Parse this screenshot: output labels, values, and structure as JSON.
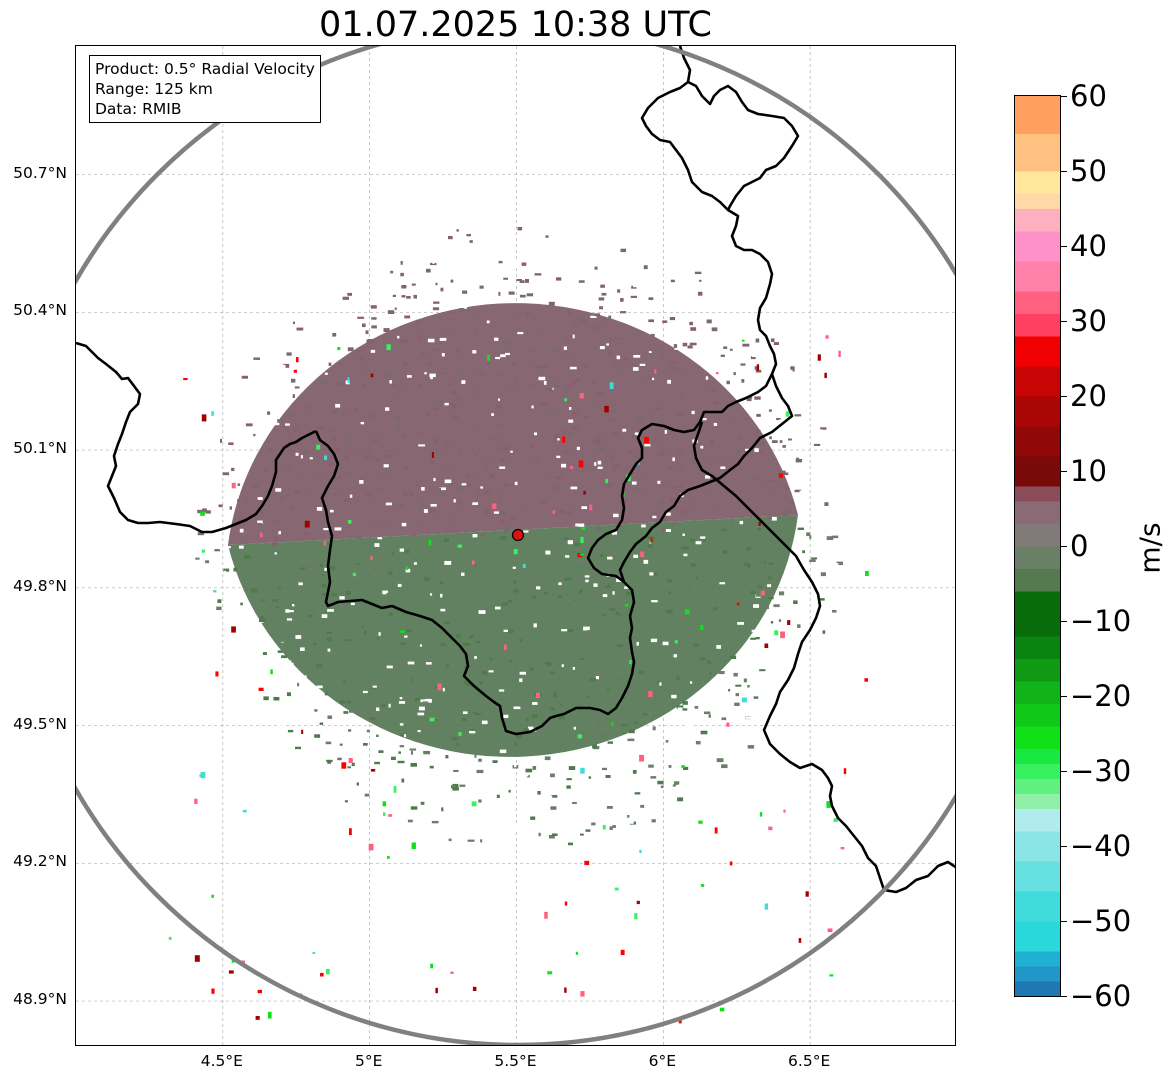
{
  "title": "01.07.2025 10:38 UTC",
  "info_box": {
    "product": "Product: 0.5° Radial Velocity",
    "range": "Range: 125 km",
    "data": "Data: RMIB"
  },
  "map": {
    "lon_min": 4.0,
    "lon_max": 7.0,
    "lat_min": 48.8,
    "lat_max": 50.98,
    "radar_site": {
      "lon": 5.505,
      "lat": 49.915
    },
    "colors": {
      "range_ring": "#808080",
      "border": "#000000",
      "radar_marker": "#e01010",
      "receding": "#7f5f6a",
      "approaching": "#5a7a58",
      "grid": "#b0b0b0"
    },
    "lat_ticks": [
      {
        "value": 50.7,
        "label": "50.7°N"
      },
      {
        "value": 50.4,
        "label": "50.4°N"
      },
      {
        "value": 50.1,
        "label": "50.1°N"
      },
      {
        "value": 49.8,
        "label": "49.8°N"
      },
      {
        "value": 49.5,
        "label": "49.5°N"
      },
      {
        "value": 49.2,
        "label": "49.2°N"
      },
      {
        "value": 48.9,
        "label": "48.9°N"
      }
    ],
    "lon_ticks": [
      {
        "value": 4.5,
        "label": "4.5°E"
      },
      {
        "value": 5.0,
        "label": "5°E"
      },
      {
        "value": 5.5,
        "label": "5.5°E"
      },
      {
        "value": 6.0,
        "label": "6°E"
      },
      {
        "value": 6.5,
        "label": "6.5°E"
      }
    ]
  },
  "colorbar": {
    "unit": "m/s",
    "min": -60,
    "max": 60,
    "ticks": [
      {
        "value": 60,
        "label": "60"
      },
      {
        "value": 50,
        "label": "50"
      },
      {
        "value": 40,
        "label": "40"
      },
      {
        "value": 30,
        "label": "30"
      },
      {
        "value": 20,
        "label": "20"
      },
      {
        "value": 10,
        "label": "10"
      },
      {
        "value": 0,
        "label": "0"
      },
      {
        "value": -10,
        "label": "−10"
      },
      {
        "value": -20,
        "label": "−20"
      },
      {
        "value": -30,
        "label": "−30"
      },
      {
        "value": -40,
        "label": "−40"
      },
      {
        "value": -50,
        "label": "−50"
      },
      {
        "value": -60,
        "label": "−60"
      }
    ],
    "stops": [
      {
        "from": -60,
        "to": -58,
        "color": "#1f78b4"
      },
      {
        "from": -58,
        "to": -56,
        "color": "#2396c8"
      },
      {
        "from": -56,
        "to": -54,
        "color": "#20b0d4"
      },
      {
        "from": -54,
        "to": -50,
        "color": "#2ad8dc"
      },
      {
        "from": -50,
        "to": -46,
        "color": "#40dcdc"
      },
      {
        "from": -46,
        "to": -42,
        "color": "#66e0e0"
      },
      {
        "from": -42,
        "to": -38,
        "color": "#8ae6e6"
      },
      {
        "from": -38,
        "to": -35,
        "color": "#b0ecee"
      },
      {
        "from": -35,
        "to": -33,
        "color": "#90f0a8"
      },
      {
        "from": -33,
        "to": -31,
        "color": "#60f080"
      },
      {
        "from": -31,
        "to": -29,
        "color": "#38f060"
      },
      {
        "from": -29,
        "to": -27,
        "color": "#18e840"
      },
      {
        "from": -27,
        "to": -24,
        "color": "#10e018"
      },
      {
        "from": -24,
        "to": -21,
        "color": "#10c818"
      },
      {
        "from": -21,
        "to": -18,
        "color": "#10b418"
      },
      {
        "from": -18,
        "to": -15,
        "color": "#109a14"
      },
      {
        "from": -15,
        "to": -12,
        "color": "#0a8410"
      },
      {
        "from": -12,
        "to": -6,
        "color": "#086c0a"
      },
      {
        "from": -6,
        "to": -3,
        "color": "#557a50"
      },
      {
        "from": -3,
        "to": 0,
        "color": "#6a8066"
      },
      {
        "from": 0,
        "to": 3,
        "color": "#827a78"
      },
      {
        "from": 3,
        "to": 6,
        "color": "#8a6a74"
      },
      {
        "from": 6,
        "to": 8,
        "color": "#8a4c58"
      },
      {
        "from": 8,
        "to": 12,
        "color": "#7a0a0a"
      },
      {
        "from": 12,
        "to": 16,
        "color": "#900808"
      },
      {
        "from": 16,
        "to": 20,
        "color": "#aa0606"
      },
      {
        "from": 20,
        "to": 24,
        "color": "#c80404"
      },
      {
        "from": 24,
        "to": 28,
        "color": "#f00000"
      },
      {
        "from": 28,
        "to": 31,
        "color": "#ff4060"
      },
      {
        "from": 31,
        "to": 34,
        "color": "#ff6080"
      },
      {
        "from": 34,
        "to": 38,
        "color": "#ff80a8"
      },
      {
        "from": 38,
        "to": 42,
        "color": "#ff90c8"
      },
      {
        "from": 42,
        "to": 45,
        "color": "#ffb0c0"
      },
      {
        "from": 45,
        "to": 47,
        "color": "#ffd8a8"
      },
      {
        "from": 47,
        "to": 50,
        "color": "#ffe89c"
      },
      {
        "from": 50,
        "to": 55,
        "color": "#ffc080"
      },
      {
        "from": 55,
        "to": 60,
        "color": "#ffa060"
      }
    ]
  }
}
